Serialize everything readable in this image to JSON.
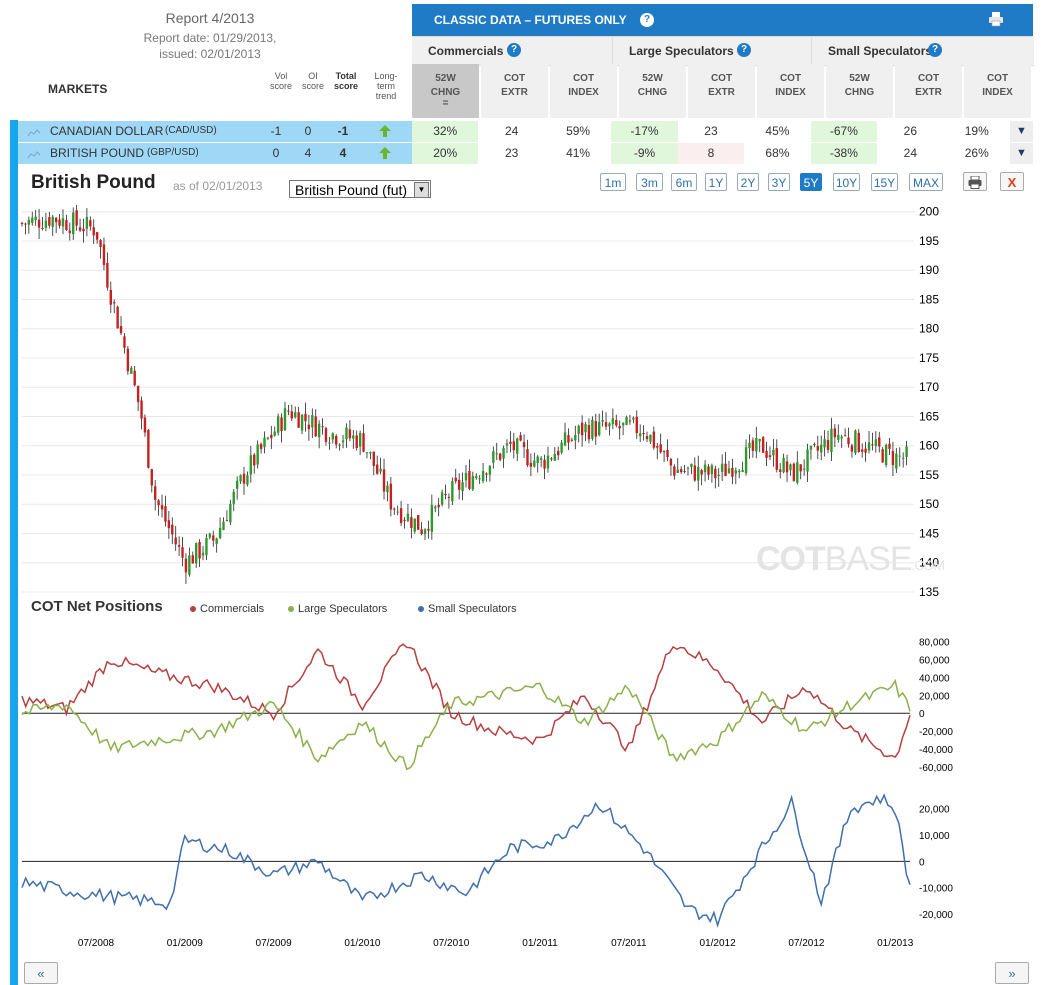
{
  "report": {
    "title": "Report 4/2013",
    "date": "Report date: 01/29/2013,",
    "issued": "issued: 02/01/2013"
  },
  "markets_label": "MARKETS",
  "score_headers": [
    {
      "lines": [
        "Vol",
        "score"
      ],
      "bold": false
    },
    {
      "lines": [
        "OI",
        "score"
      ],
      "bold": false
    },
    {
      "lines": [
        "Total",
        "score"
      ],
      "bold": true
    },
    {
      "lines": [
        "Long-",
        "term",
        "trend"
      ],
      "bold": false
    }
  ],
  "classic": {
    "title": "CLASSIC DATA – FUTURES ONLY",
    "help": "?",
    "print_icon": "printer-icon"
  },
  "groups": [
    {
      "label": "Commercials",
      "help": "?"
    },
    {
      "label": "Large Speculators",
      "help": "?"
    },
    {
      "label": "Small Speculators",
      "help": "?"
    }
  ],
  "subheaders": [
    [
      "52W",
      "CHNG"
    ],
    [
      "COT",
      "EXTR"
    ],
    [
      "COT",
      "INDEX"
    ],
    [
      "52W",
      "CHNG"
    ],
    [
      "COT",
      "EXTR"
    ],
    [
      "COT",
      "INDEX"
    ],
    [
      "52W",
      "CHNG"
    ],
    [
      "COT",
      "EXTR"
    ],
    [
      "COT",
      "INDEX"
    ]
  ],
  "rows": [
    {
      "name": "CANADIAN DOLLAR",
      "code": "(CAD/USD)",
      "vol": "-1",
      "oi": "0",
      "total": "-1",
      "trend": "up",
      "cells": [
        "32%",
        "24",
        "59%",
        "-17%",
        "23",
        "45%",
        "-67%",
        "26",
        "19%"
      ]
    },
    {
      "name": "BRITISH POUND",
      "code": "(GBP/USD)",
      "vol": "0",
      "oi": "4",
      "total": "4",
      "trend": "up",
      "cells": [
        "20%",
        "23",
        "41%",
        "-9%",
        "8",
        "68%",
        "-38%",
        "24",
        "26%"
      ]
    }
  ],
  "chart_header": {
    "title": "British Pound",
    "asof": "as of 02/01/2013",
    "select_value": "British Pound (fut)",
    "ranges": [
      "1m",
      "3m",
      "6m",
      "1Y",
      "2Y",
      "3Y",
      "5Y",
      "10Y",
      "15Y",
      "MAX"
    ],
    "active_range": "5Y",
    "close_label": "X"
  },
  "watermark": {
    "main": "COT",
    "rest": "BASE",
    "suffix": ".COM"
  },
  "cot_section": {
    "title": "COT Net Positions",
    "legend": [
      {
        "name": "Commercials",
        "color": "#b5403f"
      },
      {
        "name": "Large Speculators",
        "color": "#8ab04a"
      },
      {
        "name": "Small Speculators",
        "color": "#3f6fad"
      }
    ]
  },
  "nav": {
    "prev": "«",
    "next": "»"
  },
  "chart_data": [
    {
      "type": "candlestick",
      "title": "British Pound",
      "ylim": [
        135,
        202
      ],
      "yticks": [
        200,
        195,
        190,
        185,
        180,
        175,
        170,
        165,
        160,
        155,
        150,
        145,
        140,
        135
      ],
      "x_range": [
        "2008-02",
        "2013-02"
      ],
      "grid": true,
      "keypoints": [
        [
          "2008-02",
          198
        ],
        [
          "2008-04",
          199
        ],
        [
          "2008-07",
          197
        ],
        [
          "2008-08",
          186
        ],
        [
          "2008-10",
          166
        ],
        [
          "2008-11",
          151
        ],
        [
          "2009-01",
          140
        ],
        [
          "2009-03",
          144
        ],
        [
          "2009-05",
          155
        ],
        [
          "2009-08",
          166
        ],
        [
          "2009-11",
          162
        ],
        [
          "2010-01",
          161
        ],
        [
          "2010-03",
          150
        ],
        [
          "2010-05",
          146
        ],
        [
          "2010-07",
          152
        ],
        [
          "2010-11",
          160
        ],
        [
          "2011-01",
          157
        ],
        [
          "2011-04",
          163
        ],
        [
          "2011-08",
          163
        ],
        [
          "2011-10",
          156
        ],
        [
          "2012-01",
          155
        ],
        [
          "2012-04",
          160
        ],
        [
          "2012-06",
          155
        ],
        [
          "2012-09",
          162
        ],
        [
          "2013-01",
          158
        ]
      ]
    },
    {
      "type": "line",
      "title": "COT Net Positions",
      "ylim": [
        -70000,
        95000
      ],
      "yticks": [
        "80,000",
        "60,000",
        "40,000",
        "20,000",
        "0",
        "-20,000",
        "-40,000",
        "-60,000"
      ],
      "series": [
        {
          "name": "Commercials",
          "keypoints": [
            [
              "2008-02",
              15000
            ],
            [
              "2008-05",
              5000
            ],
            [
              "2008-08",
              60000
            ],
            [
              "2008-11",
              45000
            ],
            [
              "2009-03",
              30000
            ],
            [
              "2009-07",
              0
            ],
            [
              "2009-10",
              70000
            ],
            [
              "2010-01",
              10000
            ],
            [
              "2010-04",
              80000
            ],
            [
              "2010-07",
              0
            ],
            [
              "2010-10",
              -20000
            ],
            [
              "2011-01",
              -30000
            ],
            [
              "2011-04",
              20000
            ],
            [
              "2011-07",
              -40000
            ],
            [
              "2011-10",
              80000
            ],
            [
              "2012-01",
              50000
            ],
            [
              "2012-04",
              -10000
            ],
            [
              "2012-07",
              30000
            ],
            [
              "2012-10",
              -20000
            ],
            [
              "2013-01",
              -50000
            ],
            [
              "2013-02",
              0
            ]
          ]
        },
        {
          "name": "Large Speculators",
          "keypoints": [
            [
              "2008-02",
              0
            ],
            [
              "2008-05",
              10000
            ],
            [
              "2008-08",
              -40000
            ],
            [
              "2008-11",
              -30000
            ],
            [
              "2009-03",
              -20000
            ],
            [
              "2009-07",
              10000
            ],
            [
              "2009-10",
              -50000
            ],
            [
              "2010-01",
              -10000
            ],
            [
              "2010-04",
              -60000
            ],
            [
              "2010-07",
              10000
            ],
            [
              "2010-10",
              20000
            ],
            [
              "2011-01",
              30000
            ],
            [
              "2011-04",
              -10000
            ],
            [
              "2011-07",
              30000
            ],
            [
              "2011-10",
              -50000
            ],
            [
              "2012-01",
              -30000
            ],
            [
              "2012-04",
              20000
            ],
            [
              "2012-07",
              -20000
            ],
            [
              "2012-10",
              10000
            ],
            [
              "2013-01",
              30000
            ],
            [
              "2013-02",
              5000
            ]
          ]
        }
      ]
    },
    {
      "type": "line",
      "ylim": [
        -26000,
        27000
      ],
      "yticks": [
        "20,000",
        "10,000",
        "0",
        "-10,000",
        "-20,000"
      ],
      "series": [
        {
          "name": "Small Speculators",
          "keypoints": [
            [
              "2008-02",
              -8000
            ],
            [
              "2008-06",
              -12000
            ],
            [
              "2008-12",
              -16000
            ],
            [
              "2009-01",
              8000
            ],
            [
              "2009-04",
              4000
            ],
            [
              "2009-07",
              -5000
            ],
            [
              "2009-10",
              0
            ],
            [
              "2010-01",
              -15000
            ],
            [
              "2010-05",
              -5000
            ],
            [
              "2010-08",
              -12000
            ],
            [
              "2010-11",
              5000
            ],
            [
              "2011-02",
              8000
            ],
            [
              "2011-05",
              22000
            ],
            [
              "2011-08",
              5000
            ],
            [
              "2011-11",
              -18000
            ],
            [
              "2012-01",
              -22000
            ],
            [
              "2012-04",
              5000
            ],
            [
              "2012-06",
              22000
            ],
            [
              "2012-08",
              -15000
            ],
            [
              "2012-10",
              20000
            ],
            [
              "2012-12",
              24000
            ],
            [
              "2013-01",
              20000
            ],
            [
              "2013-02",
              -10000
            ]
          ]
        }
      ]
    }
  ],
  "x_labels": [
    "07/2008",
    "01/2009",
    "07/2009",
    "01/2010",
    "07/2010",
    "01/2011",
    "07/2011",
    "01/2012",
    "07/2012",
    "01/2013"
  ]
}
